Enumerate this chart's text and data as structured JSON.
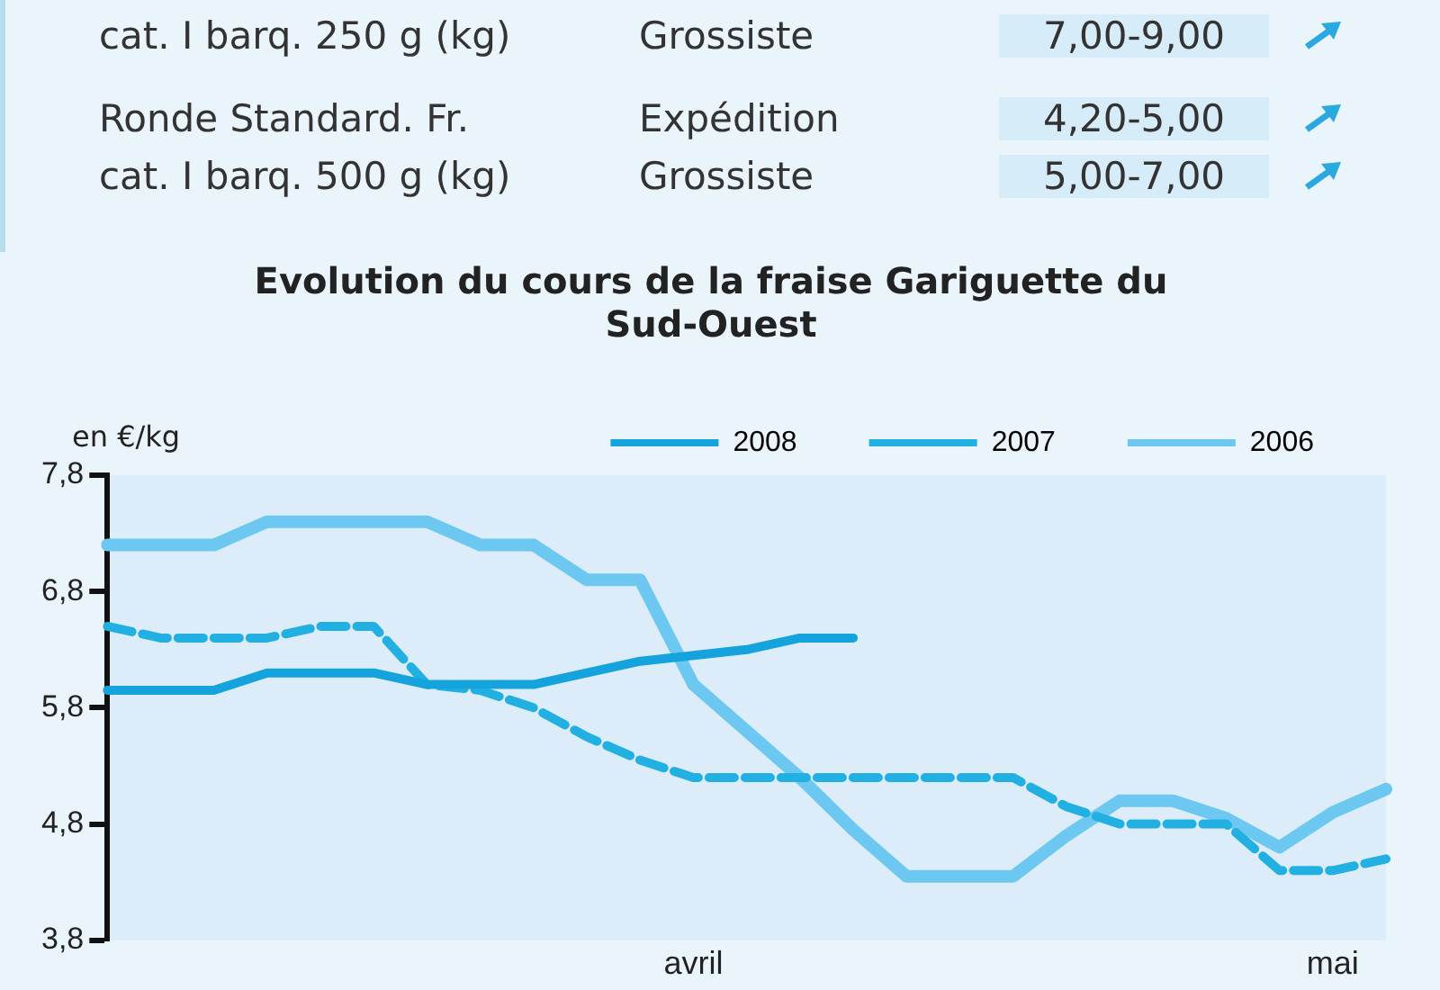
{
  "chart_data": {
    "type": "line",
    "title": "Evolution du cours de la fraise Gariguette du Sud-Ouest",
    "ylabel": "en €/kg",
    "categories": [
      null,
      null,
      null,
      null,
      null,
      null,
      null,
      null,
      null,
      null,
      null,
      "avril",
      null,
      null,
      null,
      null,
      null,
      null,
      null,
      null,
      null,
      null,
      null,
      "mai",
      null
    ],
    "series": [
      {
        "name": "2008",
        "color": "#14a3dc",
        "line_style": "solid",
        "values": [
          5.95,
          5.95,
          5.95,
          6.1,
          6.1,
          6.1,
          6.0,
          6.0,
          6.0,
          6.1,
          6.2,
          6.25,
          6.3,
          6.4,
          6.4,
          null,
          null,
          null,
          null,
          null,
          null,
          null,
          null,
          null,
          null
        ]
      },
      {
        "name": "2007",
        "color": "#22b0e3",
        "line_style": "dashed",
        "values": [
          6.5,
          6.4,
          6.4,
          6.4,
          6.5,
          6.5,
          6.0,
          5.95,
          5.8,
          5.55,
          5.35,
          5.2,
          5.2,
          5.2,
          5.2,
          5.2,
          5.2,
          5.2,
          4.95,
          4.8,
          4.8,
          4.8,
          4.4,
          4.4,
          4.5
        ]
      },
      {
        "name": "2006",
        "color": "#6cc8f0",
        "line_style": "solid",
        "values": [
          7.2,
          7.2,
          7.2,
          7.4,
          7.4,
          7.4,
          7.4,
          7.2,
          7.2,
          6.9,
          6.9,
          6.0,
          5.6,
          5.2,
          4.75,
          4.35,
          4.35,
          4.35,
          4.7,
          5.0,
          5.0,
          4.85,
          4.6,
          4.9,
          5.1
        ]
      }
    ],
    "ylim": [
      3.8,
      7.8
    ],
    "yticks": [
      {
        "value": 3.8,
        "label": "3,8"
      },
      {
        "value": 4.8,
        "label": "4,8"
      },
      {
        "value": 5.8,
        "label": "5,8"
      },
      {
        "value": 6.8,
        "label": "6,8"
      },
      {
        "value": 7.8,
        "label": "7,8"
      }
    ],
    "grid": false,
    "legend": "top",
    "marker": "none",
    "annotations": [
      "cat. I barq. 250 g (kg)",
      "Grossiste",
      "7,00-9,00",
      "Ronde Standard. Fr.",
      "Expédition",
      "4,20-5,00",
      "cat. I barq. 500 g (kg)",
      "Grossiste",
      "5,00-7,00"
    ]
  }
}
